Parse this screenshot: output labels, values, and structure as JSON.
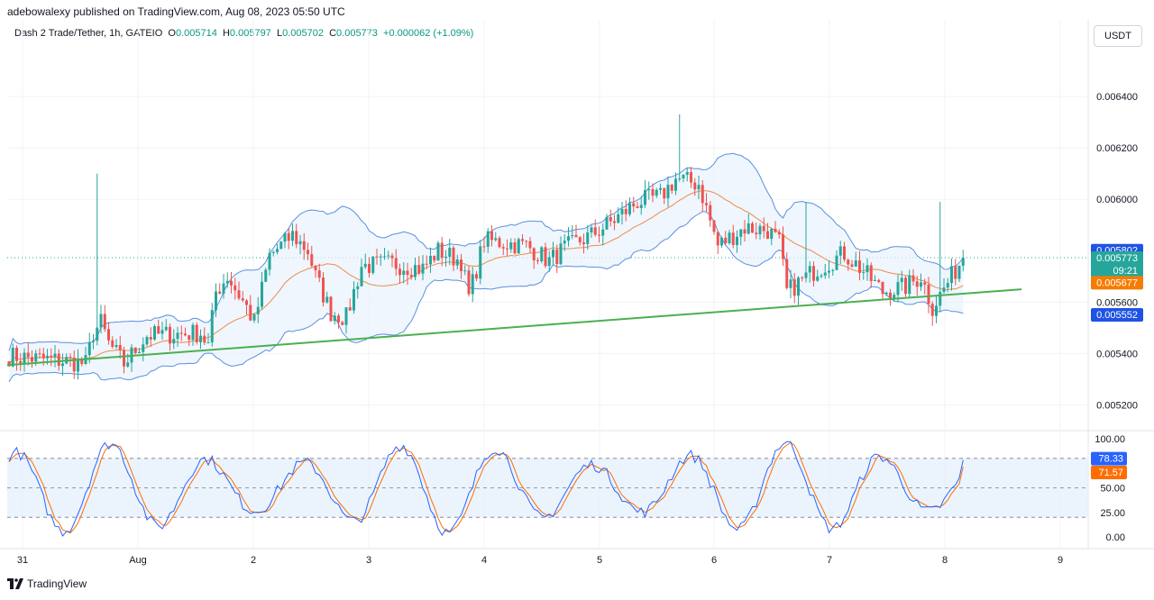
{
  "header": {
    "published": "adebowalexy published on TradingView.com, Aug 08, 2023 05:50 UTC",
    "symbol": "Dash 2 Trade/Tether, 1h, GATEIO",
    "o_label": "O",
    "o_value": "0.005714",
    "h_label": "H",
    "h_value": "0.005797",
    "l_label": "L",
    "l_value": "0.005702",
    "c_label": "C",
    "c_value": "0.005773",
    "change": "+0.000062 (+1.09%)"
  },
  "currency_button": "USDT",
  "footer": {
    "brand": "TradingView"
  },
  "chart_data": [
    {
      "type": "candlestick",
      "ylim": [
        0.0051,
        0.0066
      ],
      "y_ticks": [
        "0.006400",
        "0.006200",
        "0.006000",
        "0.005600",
        "0.005400",
        "0.005200"
      ],
      "x_ticks": [
        "31",
        "Aug",
        "2",
        "3",
        "4",
        "5",
        "6",
        "7",
        "8",
        "9"
      ],
      "price_labels": [
        {
          "value": "0.005802",
          "role": "upper band",
          "color": "#1e53e5"
        },
        {
          "value": "0.005773",
          "role": "last price",
          "countdown": "09:21",
          "color": "#26a69a"
        },
        {
          "value": "0.005677",
          "role": "middle band",
          "color": "#f57c00"
        },
        {
          "value": "0.005552",
          "role": "lower band",
          "color": "#1e53e5"
        }
      ],
      "last_price": 0.005773,
      "indicators": [
        "Bollinger Bands",
        "Trendline"
      ],
      "colors": {
        "up": "#26a69a",
        "down": "#ef5350",
        "bands": "#5b8fe0",
        "basis": "#f08a4b",
        "trendline": "#4caf50"
      }
    },
    {
      "type": "line",
      "indicator": "Stochastic RSI",
      "ylim": [
        0,
        100
      ],
      "y_ticks": [
        "100.00",
        "50.00",
        "25.00",
        "0.00"
      ],
      "levels": [
        80,
        50,
        20
      ],
      "series": [
        {
          "value_label": "78.33",
          "color": "#2962ff"
        },
        {
          "value_label": "71.57",
          "color": "#ff6d00"
        }
      ]
    }
  ]
}
